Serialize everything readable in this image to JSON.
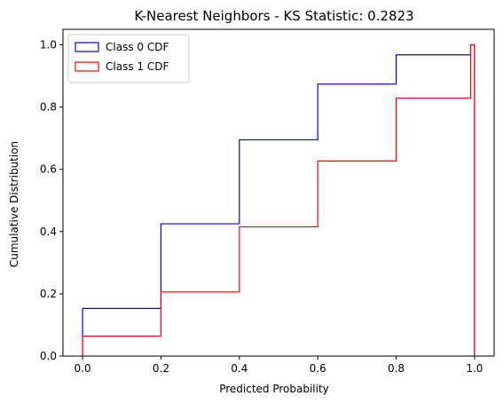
{
  "chart_data": {
    "type": "line",
    "title": "K-Nearest Neighbors - KS Statistic: 0.2823",
    "xlabel": "Predicted Probability",
    "ylabel": "Cumulative Distribution",
    "xlim": [
      -0.05,
      1.05
    ],
    "ylim": [
      0,
      1.05
    ],
    "xticks": [
      0.0,
      0.2,
      0.4,
      0.6,
      0.8,
      1.0
    ],
    "xtick_labels": [
      "0.0",
      "0.2",
      "0.4",
      "0.6",
      "0.8",
      "1.0"
    ],
    "yticks": [
      0.0,
      0.2,
      0.4,
      0.6,
      0.8,
      1.0
    ],
    "ytick_labels": [
      "0.0",
      "0.2",
      "0.4",
      "0.6",
      "0.8",
      "1.0"
    ],
    "grid": false,
    "legend_position": "top-left",
    "series": [
      {
        "name": "Class 0 CDF",
        "color": "#0000ff",
        "style": "step",
        "x": [
          0.0,
          0.2,
          0.4,
          0.6,
          0.8,
          0.99,
          1.0
        ],
        "y": [
          0.153,
          0.425,
          0.695,
          0.874,
          0.968,
          1.0,
          0.0
        ]
      },
      {
        "name": "Class 1 CDF",
        "color": "#ff0000",
        "style": "step",
        "x": [
          0.0,
          0.2,
          0.4,
          0.6,
          0.8,
          0.99,
          1.0
        ],
        "y": [
          0.064,
          0.206,
          0.415,
          0.627,
          0.829,
          1.0,
          0.0
        ]
      }
    ]
  }
}
